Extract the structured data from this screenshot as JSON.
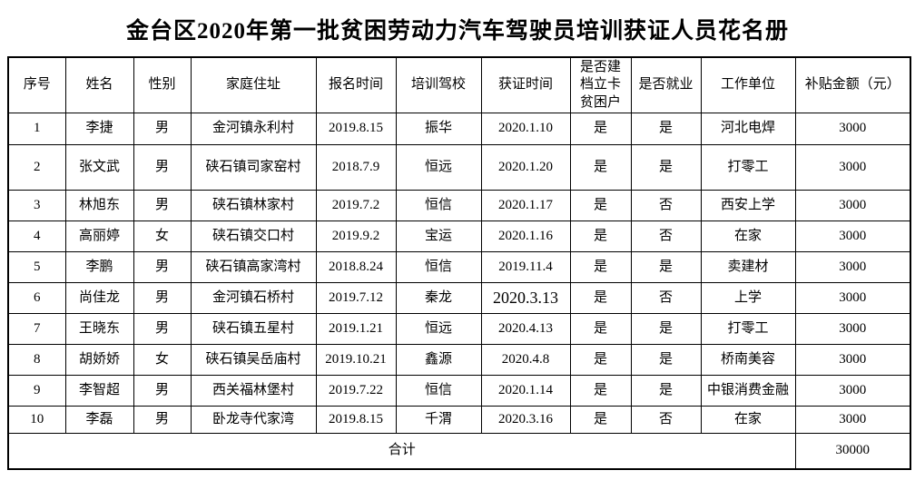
{
  "title": "金台区2020年第一批贫困劳动力汽车驾驶员培训获证人员花名册",
  "table": {
    "headers": [
      "序号",
      "姓名",
      "性别",
      "家庭住址",
      "报名时间",
      "培训驾校",
      "获证时间",
      "是否建档立卡贫困户",
      "是否就业",
      "工作单位",
      "补贴金额（元）"
    ],
    "rows": [
      [
        "1",
        "李捷",
        "男",
        "金河镇永利村",
        "2019.8.15",
        "振华",
        "2020.1.10",
        "是",
        "是",
        "河北电焊",
        "3000"
      ],
      [
        "2",
        "张文武",
        "男",
        "硖石镇司家窑村",
        "2018.7.9",
        "恒远",
        "2020.1.20",
        "是",
        "是",
        "打零工",
        "3000"
      ],
      [
        "3",
        "林旭东",
        "男",
        "硖石镇林家村",
        "2019.7.2",
        "恒信",
        "2020.1.17",
        "是",
        "否",
        "西安上学",
        "3000"
      ],
      [
        "4",
        "高丽婷",
        "女",
        "硖石镇交口村",
        "2019.9.2",
        "宝运",
        "2020.1.16",
        "是",
        "否",
        "在家",
        "3000"
      ],
      [
        "5",
        "李鹏",
        "男",
        "硖石镇高家湾村",
        "2018.8.24",
        "恒信",
        "2019.11.4",
        "是",
        "是",
        "卖建材",
        "3000"
      ],
      [
        "6",
        "尚佳龙",
        "男",
        "金河镇石桥村",
        "2019.7.12",
        "秦龙",
        "2020.3.13",
        "是",
        "否",
        "上学",
        "3000"
      ],
      [
        "7",
        "王晓东",
        "男",
        "硖石镇五星村",
        "2019.1.21",
        "恒远",
        "2020.4.13",
        "是",
        "是",
        "打零工",
        "3000"
      ],
      [
        "8",
        "胡娇娇",
        "女",
        "硖石镇吴岳庙村",
        "2019.10.21",
        "鑫源",
        "2020.4.8",
        "是",
        "是",
        "桥南美容",
        "3000"
      ],
      [
        "9",
        "李智超",
        "男",
        "西关福林堡村",
        "2019.7.22",
        "恒信",
        "2020.1.14",
        "是",
        "是",
        "中银消费金融",
        "3000"
      ],
      [
        "10",
        "李磊",
        "男",
        "卧龙寺代家湾",
        "2019.8.15",
        "千渭",
        "2020.3.16",
        "是",
        "否",
        "在家",
        "3000"
      ]
    ],
    "total_label": "合计",
    "total_value": "30000"
  }
}
